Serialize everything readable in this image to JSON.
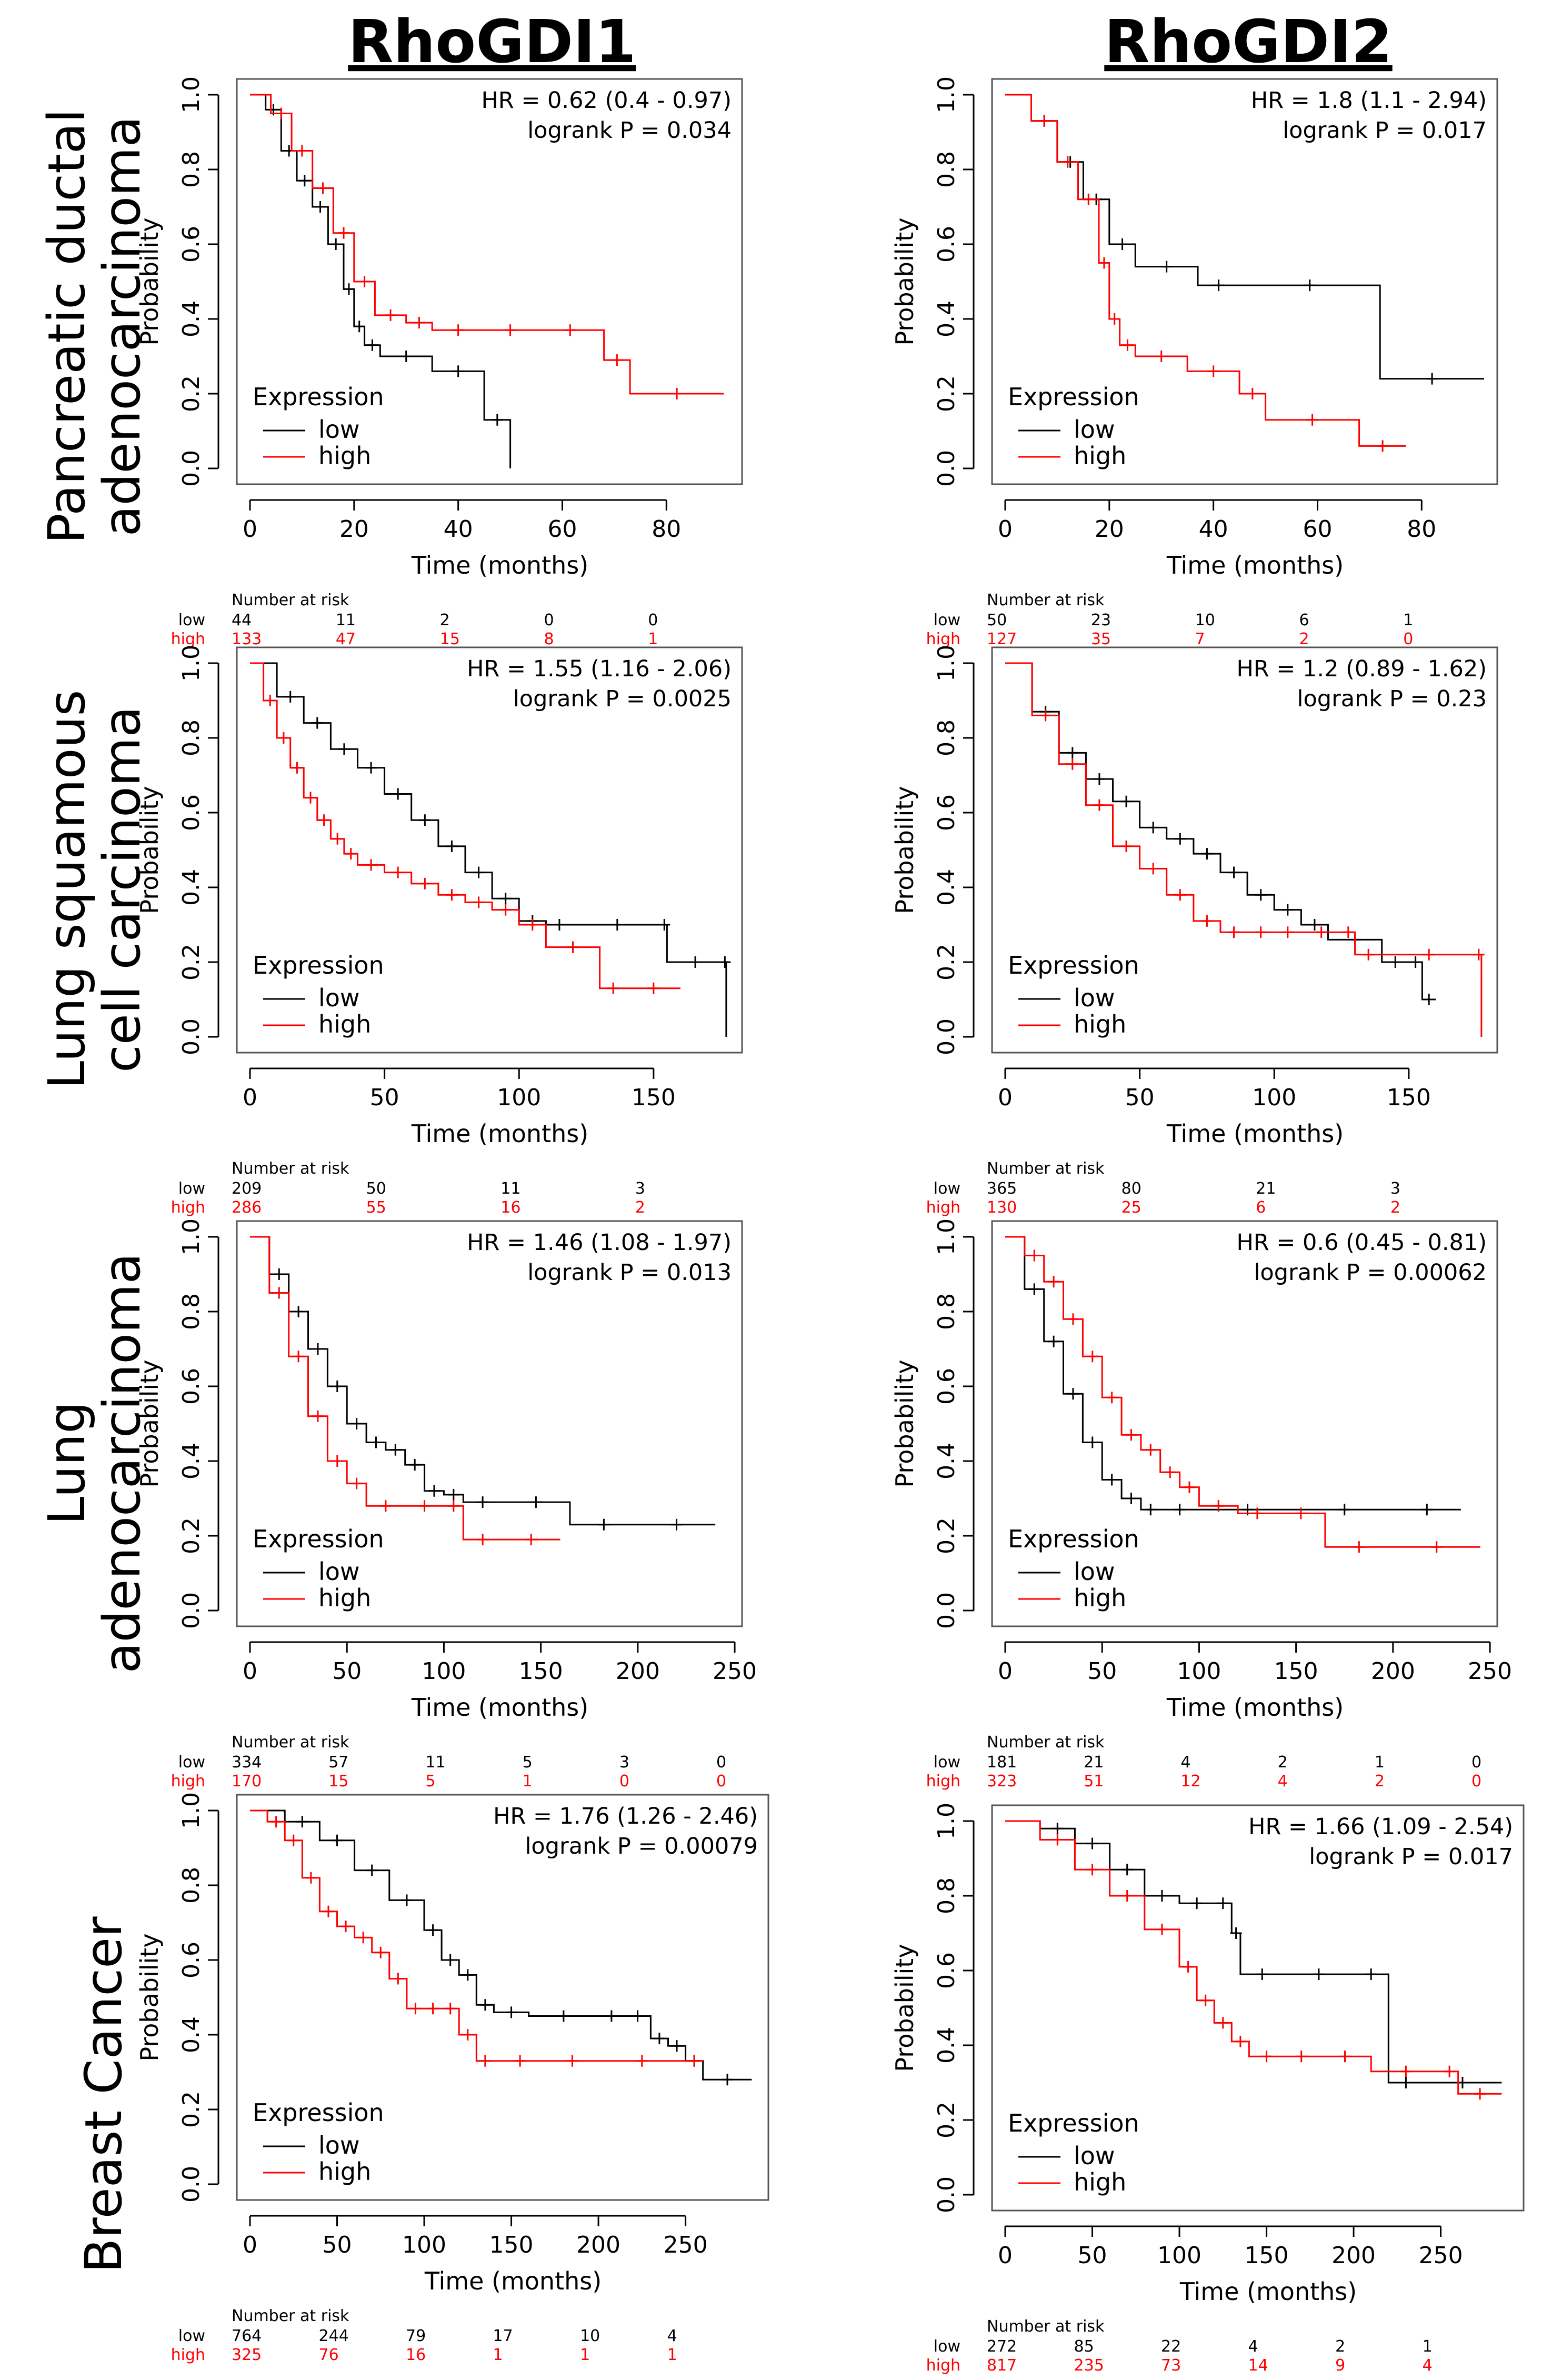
{
  "column_titles": [
    "RhoGDI1",
    "RhoGDI2"
  ],
  "row_labels": [
    [
      "Pancreatic ductal",
      "adenocarcinoma"
    ],
    [
      "Lung squamous",
      "cell carcinoma"
    ],
    [
      "Lung",
      "adenocarcinoma"
    ],
    [
      "Breast Cancer"
    ]
  ],
  "colors": {
    "low": "#000000",
    "high": "#ff0000",
    "frame": "#555555"
  },
  "chart_data": [
    {
      "type": "line",
      "panel": "pdac-rhogdi1",
      "xlabel": "Time (months)",
      "ylabel": "Probability",
      "xlim": [
        0,
        92
      ],
      "ylim": [
        0,
        1
      ],
      "xticks": [
        "0",
        "20",
        "40",
        "60",
        "80"
      ],
      "yticks": [
        "0.0",
        "0.2",
        "0.4",
        "0.6",
        "0.8",
        "1.0"
      ],
      "hr": "HR = 0.62 (0.4 - 0.97)",
      "logrank": "logrank P = 0.034",
      "legend_title": "Expression",
      "series": [
        {
          "name": "low",
          "x": [
            0,
            3,
            6,
            9,
            12,
            15,
            18,
            20,
            22,
            25,
            35,
            45,
            50
          ],
          "y": [
            1.0,
            0.96,
            0.85,
            0.77,
            0.7,
            0.6,
            0.48,
            0.38,
            0.33,
            0.3,
            0.26,
            0.13,
            0.0
          ]
        },
        {
          "name": "high",
          "x": [
            0,
            4,
            8,
            12,
            16,
            20,
            24,
            30,
            35,
            45,
            55,
            68,
            73,
            91
          ],
          "y": [
            1.0,
            0.95,
            0.85,
            0.75,
            0.63,
            0.5,
            0.41,
            0.39,
            0.37,
            0.37,
            0.37,
            0.29,
            0.2,
            0.2
          ]
        }
      ],
      "risk": {
        "title": "Number at risk",
        "low": [
          "44",
          "11",
          "2",
          "0",
          "0"
        ],
        "high": [
          "133",
          "47",
          "15",
          "8",
          "1"
        ]
      }
    },
    {
      "type": "line",
      "panel": "pdac-rhogdi2",
      "xlabel": "Time (months)",
      "ylabel": "Probability",
      "xlim": [
        0,
        92
      ],
      "ylim": [
        0,
        1
      ],
      "xticks": [
        "0",
        "20",
        "40",
        "60",
        "80"
      ],
      "yticks": [
        "0.0",
        "0.2",
        "0.4",
        "0.6",
        "0.8",
        "1.0"
      ],
      "hr": "HR = 1.8 (1.1 - 2.94)",
      "logrank": "logrank P = 0.017",
      "legend_title": "Expression",
      "series": [
        {
          "name": "low",
          "x": [
            0,
            5,
            10,
            15,
            20,
            25,
            37,
            45,
            72,
            92
          ],
          "y": [
            1.0,
            0.93,
            0.82,
            0.72,
            0.6,
            0.54,
            0.49,
            0.49,
            0.24,
            0.24
          ]
        },
        {
          "name": "high",
          "x": [
            0,
            5,
            10,
            14,
            18,
            20,
            22,
            25,
            35,
            45,
            50,
            68,
            77
          ],
          "y": [
            1.0,
            0.93,
            0.82,
            0.72,
            0.55,
            0.4,
            0.33,
            0.3,
            0.26,
            0.2,
            0.13,
            0.06,
            0.06
          ]
        }
      ],
      "risk": {
        "title": "Number at risk",
        "low": [
          "50",
          "23",
          "10",
          "6",
          "1"
        ],
        "high": [
          "127",
          "35",
          "7",
          "2",
          "0"
        ]
      }
    },
    {
      "type": "line",
      "panel": "lusc-rhogdi1",
      "xlabel": "Time (months)",
      "ylabel": "Probability",
      "xlim": [
        0,
        178
      ],
      "ylim": [
        0,
        1
      ],
      "xticks": [
        "0",
        "50",
        "100",
        "150"
      ],
      "yticks": [
        "0.0",
        "0.2",
        "0.4",
        "0.6",
        "0.8",
        "1.0"
      ],
      "hr": "HR = 1.55 (1.16 - 2.06)",
      "logrank": "logrank P = 0.0025",
      "legend_title": "Expression",
      "series": [
        {
          "name": "low",
          "x": [
            0,
            10,
            20,
            30,
            40,
            50,
            60,
            70,
            80,
            90,
            100,
            110,
            120,
            153,
            155,
            176,
            177
          ],
          "y": [
            1.0,
            0.91,
            0.84,
            0.77,
            0.72,
            0.65,
            0.58,
            0.51,
            0.44,
            0.37,
            0.31,
            0.3,
            0.3,
            0.3,
            0.2,
            0.2,
            0.0
          ]
        },
        {
          "name": "high",
          "x": [
            0,
            5,
            10,
            15,
            20,
            25,
            30,
            35,
            40,
            50,
            60,
            70,
            80,
            90,
            100,
            110,
            130,
            140,
            160
          ],
          "y": [
            1.0,
            0.9,
            0.8,
            0.72,
            0.64,
            0.58,
            0.53,
            0.49,
            0.46,
            0.44,
            0.41,
            0.38,
            0.36,
            0.34,
            0.3,
            0.24,
            0.13,
            0.13,
            0.13
          ]
        }
      ],
      "risk": {
        "title": "Number at risk",
        "low": [
          "209",
          "50",
          "11",
          "3"
        ],
        "high": [
          "286",
          "55",
          "16",
          "2"
        ]
      }
    },
    {
      "type": "line",
      "panel": "lusc-rhogdi2",
      "xlabel": "Time (months)",
      "ylabel": "Probability",
      "xlim": [
        0,
        178
      ],
      "ylim": [
        0,
        1
      ],
      "xticks": [
        "0",
        "50",
        "100",
        "150"
      ],
      "yticks": [
        "0.0",
        "0.2",
        "0.4",
        "0.6",
        "0.8",
        "1.0"
      ],
      "hr": "HR = 1.2 (0.89 - 1.62)",
      "logrank": "logrank P = 0.23",
      "legend_title": "Expression",
      "series": [
        {
          "name": "low",
          "x": [
            0,
            10,
            20,
            30,
            40,
            50,
            60,
            70,
            80,
            90,
            100,
            110,
            120,
            140,
            150,
            155,
            160
          ],
          "y": [
            1.0,
            0.87,
            0.76,
            0.69,
            0.63,
            0.56,
            0.53,
            0.49,
            0.44,
            0.38,
            0.34,
            0.3,
            0.26,
            0.2,
            0.2,
            0.1,
            0.1
          ]
        },
        {
          "name": "high",
          "x": [
            0,
            10,
            20,
            30,
            40,
            50,
            60,
            70,
            80,
            90,
            100,
            110,
            125,
            130,
            140,
            175,
            177
          ],
          "y": [
            1.0,
            0.86,
            0.73,
            0.62,
            0.51,
            0.45,
            0.38,
            0.31,
            0.28,
            0.28,
            0.28,
            0.28,
            0.28,
            0.22,
            0.22,
            0.22,
            0.0
          ]
        }
      ],
      "risk": {
        "title": "Number at risk",
        "low": [
          "365",
          "80",
          "21",
          "3"
        ],
        "high": [
          "130",
          "25",
          "6",
          "2"
        ]
      }
    },
    {
      "type": "line",
      "panel": "luad-rhogdi1",
      "xlabel": "Time (months)",
      "ylabel": "Probability",
      "xlim": [
        0,
        247
      ],
      "ylim": [
        0,
        1
      ],
      "xticks": [
        "0",
        "50",
        "100",
        "150",
        "200",
        "250"
      ],
      "yticks": [
        "0.0",
        "0.2",
        "0.4",
        "0.6",
        "0.8",
        "1.0"
      ],
      "hr": "HR = 1.46 (1.08 - 1.97)",
      "logrank": "logrank P = 0.013",
      "legend_title": "Expression",
      "series": [
        {
          "name": "low",
          "x": [
            0,
            10,
            20,
            30,
            40,
            50,
            60,
            70,
            80,
            90,
            100,
            110,
            130,
            165,
            200,
            240
          ],
          "y": [
            1.0,
            0.9,
            0.8,
            0.7,
            0.6,
            0.5,
            0.45,
            0.43,
            0.39,
            0.32,
            0.31,
            0.29,
            0.29,
            0.23,
            0.23,
            0.23
          ]
        },
        {
          "name": "high",
          "x": [
            0,
            10,
            20,
            30,
            40,
            50,
            60,
            80,
            100,
            110,
            130,
            160
          ],
          "y": [
            1.0,
            0.85,
            0.68,
            0.52,
            0.4,
            0.34,
            0.28,
            0.28,
            0.28,
            0.19,
            0.19,
            0.19
          ]
        }
      ],
      "risk": {
        "title": "Number at risk",
        "low": [
          "334",
          "57",
          "11",
          "5",
          "3",
          "0"
        ],
        "high": [
          "170",
          "15",
          "5",
          "1",
          "0",
          "0"
        ]
      }
    },
    {
      "type": "line",
      "panel": "luad-rhogdi2",
      "xlabel": "Time (months)",
      "ylabel": "Probability",
      "xlim": [
        0,
        247
      ],
      "ylim": [
        0,
        1
      ],
      "xticks": [
        "0",
        "50",
        "100",
        "150",
        "200",
        "250"
      ],
      "yticks": [
        "0.0",
        "0.2",
        "0.4",
        "0.6",
        "0.8",
        "1.0"
      ],
      "hr": "HR = 0.6 (0.45 - 0.81)",
      "logrank": "logrank P = 0.00062",
      "legend_title": "Expression",
      "series": [
        {
          "name": "low",
          "x": [
            0,
            10,
            20,
            30,
            40,
            50,
            60,
            70,
            80,
            100,
            150,
            200,
            235
          ],
          "y": [
            1.0,
            0.86,
            0.72,
            0.58,
            0.45,
            0.35,
            0.3,
            0.27,
            0.27,
            0.27,
            0.27,
            0.27,
            0.27
          ]
        },
        {
          "name": "high",
          "x": [
            0,
            10,
            20,
            30,
            40,
            50,
            60,
            70,
            80,
            90,
            100,
            120,
            140,
            165,
            200,
            245
          ],
          "y": [
            1.0,
            0.95,
            0.88,
            0.78,
            0.68,
            0.57,
            0.47,
            0.43,
            0.37,
            0.33,
            0.28,
            0.26,
            0.26,
            0.17,
            0.17,
            0.17
          ]
        }
      ],
      "risk": {
        "title": "Number at risk",
        "low": [
          "181",
          "21",
          "4",
          "2",
          "1",
          "0"
        ],
        "high": [
          "323",
          "51",
          "12",
          "4",
          "2",
          "0"
        ]
      }
    },
    {
      "type": "line",
      "panel": "breast-rhogdi1",
      "xlabel": "Time (months)",
      "ylabel": "Probability",
      "xlim": [
        0,
        290
      ],
      "ylim": [
        0,
        1
      ],
      "xticks": [
        "0",
        "50",
        "100",
        "150",
        "200",
        "250"
      ],
      "yticks": [
        "0.0",
        "0.2",
        "0.4",
        "0.6",
        "0.8",
        "1.0"
      ],
      "hr": "HR = 1.76 (1.26 - 2.46)",
      "logrank": "logrank P = 0.00079",
      "legend_title": "Expression",
      "series": [
        {
          "name": "low",
          "x": [
            0,
            20,
            40,
            60,
            80,
            100,
            110,
            120,
            130,
            140,
            160,
            200,
            215,
            230,
            240,
            250,
            260,
            288
          ],
          "y": [
            1.0,
            0.97,
            0.92,
            0.84,
            0.76,
            0.68,
            0.6,
            0.56,
            0.48,
            0.46,
            0.45,
            0.45,
            0.45,
            0.39,
            0.37,
            0.33,
            0.28,
            0.28
          ]
        },
        {
          "name": "high",
          "x": [
            0,
            10,
            20,
            30,
            40,
            50,
            60,
            70,
            80,
            90,
            100,
            110,
            120,
            130,
            140,
            170,
            200,
            250,
            260
          ],
          "y": [
            1.0,
            0.97,
            0.92,
            0.82,
            0.73,
            0.69,
            0.66,
            0.62,
            0.55,
            0.47,
            0.47,
            0.47,
            0.4,
            0.33,
            0.33,
            0.33,
            0.33,
            0.33,
            0.33
          ]
        }
      ],
      "risk": {
        "title": "Number at risk",
        "low": [
          "764",
          "244",
          "79",
          "17",
          "10",
          "4"
        ],
        "high": [
          "325",
          "76",
          "16",
          "1",
          "1",
          "1"
        ]
      }
    },
    {
      "type": "line",
      "panel": "breast-rhogdi2",
      "xlabel": "Time (months)",
      "ylabel": "Probability",
      "xlim": [
        0,
        290
      ],
      "ylim": [
        0,
        1
      ],
      "xticks": [
        "0",
        "50",
        "100",
        "150",
        "200",
        "250"
      ],
      "yticks": [
        "0.0",
        "0.2",
        "0.4",
        "0.6",
        "0.8",
        "1.0"
      ],
      "hr": "HR = 1.66 (1.09 - 2.54)",
      "logrank": "logrank P = 0.017",
      "legend_title": "Expression",
      "series": [
        {
          "name": "low",
          "x": [
            0,
            20,
            40,
            60,
            80,
            100,
            120,
            130,
            135,
            160,
            200,
            220,
            240,
            285
          ],
          "y": [
            1.0,
            0.98,
            0.94,
            0.87,
            0.8,
            0.78,
            0.78,
            0.7,
            0.59,
            0.59,
            0.59,
            0.3,
            0.3,
            0.3
          ]
        },
        {
          "name": "high",
          "x": [
            0,
            20,
            40,
            60,
            80,
            100,
            110,
            120,
            130,
            140,
            160,
            180,
            210,
            250,
            260,
            285
          ],
          "y": [
            1.0,
            0.95,
            0.87,
            0.8,
            0.71,
            0.61,
            0.52,
            0.46,
            0.41,
            0.37,
            0.37,
            0.37,
            0.33,
            0.33,
            0.27,
            0.27
          ]
        }
      ],
      "risk": {
        "title": "Number at risk",
        "low": [
          "272",
          "85",
          "22",
          "4",
          "2",
          "1"
        ],
        "high": [
          "817",
          "235",
          "73",
          "14",
          "9",
          "4"
        ]
      }
    }
  ]
}
